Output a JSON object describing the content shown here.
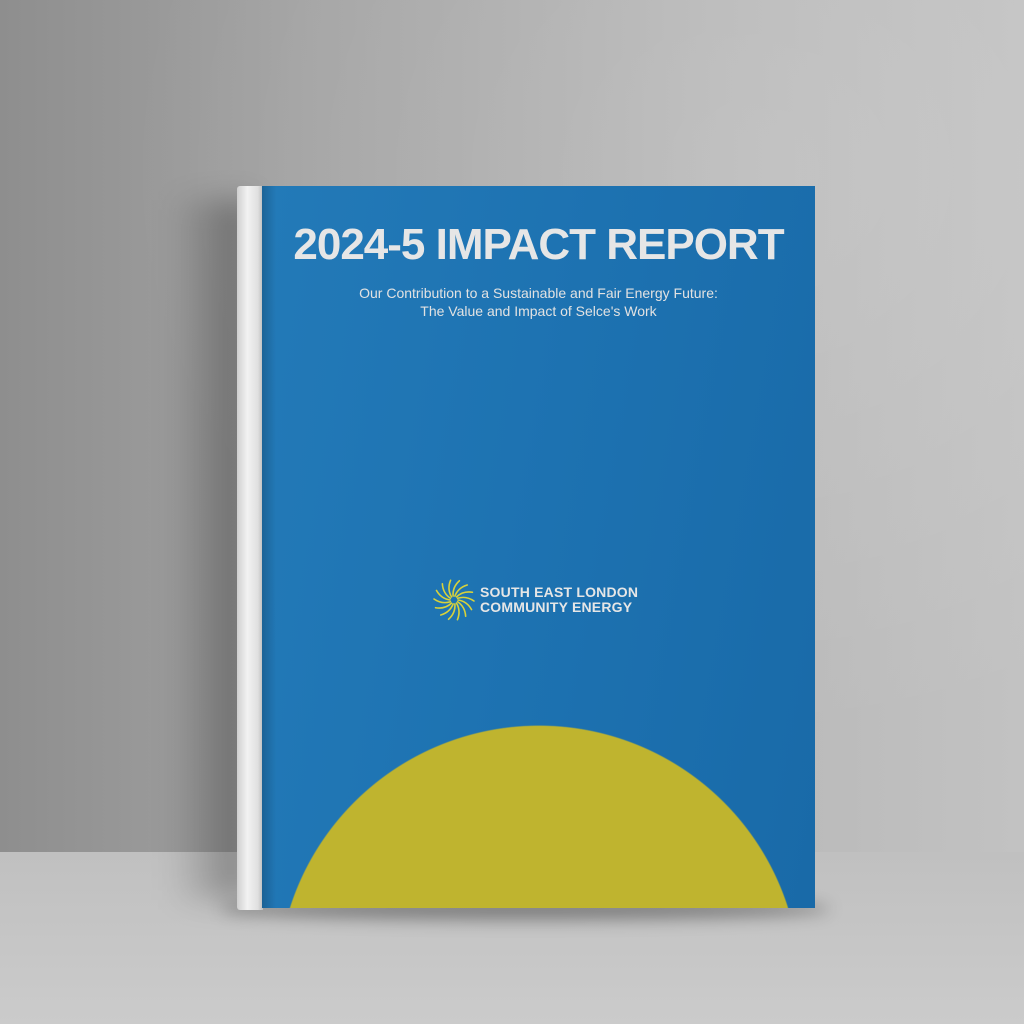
{
  "cover": {
    "title": "2024-5 IMPACT REPORT",
    "subtitle_line1": "Our Contribution to a Sustainable and Fair Energy Future:",
    "subtitle_line2": "The Value and Impact of Selce's Work",
    "logo": {
      "icon": "sunburst-icon",
      "line1": "SOUTH EAST LONDON",
      "line2": "COMMUNITY ENERGY"
    }
  },
  "colors": {
    "cover_blue": "#1d72b1",
    "accent_yellow": "#bfb42f",
    "text": "#e6e6e6"
  }
}
